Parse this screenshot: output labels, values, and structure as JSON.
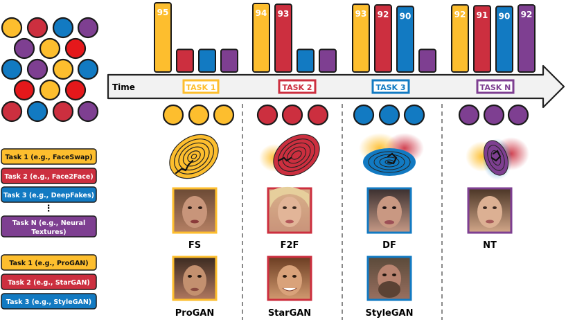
{
  "colors": {
    "yellow": "#FDBE2E",
    "red": "#CC2F3F",
    "blue": "#127AC2",
    "purple": "#7E3F91",
    "bright_red": "#E5181B",
    "outline": "#1a1a1a"
  },
  "pool": {
    "rows": [
      [
        "yellow",
        "red",
        "blue",
        "purple"
      ],
      [
        "purple",
        "yellow",
        "bright_red"
      ],
      [
        "blue",
        "purple",
        "yellow",
        "blue"
      ],
      [
        "bright_red",
        "yellow",
        "bright_red"
      ],
      [
        "red",
        "blue",
        "red",
        "purple"
      ]
    ]
  },
  "timeline": {
    "label": "Time"
  },
  "tasks": [
    {
      "name": "TASK 1",
      "color": "yellow",
      "bars": [
        {
          "value": 95,
          "color": "yellow",
          "label": "95"
        },
        {
          "value": 31,
          "color": "red",
          "label": ""
        },
        {
          "value": 31,
          "color": "blue",
          "label": ""
        },
        {
          "value": 31,
          "color": "purple",
          "label": ""
        }
      ],
      "deepfake_label": "FS",
      "gan_label": "ProGAN"
    },
    {
      "name": "TASK 2",
      "color": "red",
      "bars": [
        {
          "value": 94,
          "color": "yellow",
          "label": "94"
        },
        {
          "value": 93,
          "color": "red",
          "label": "93"
        },
        {
          "value": 31,
          "color": "blue",
          "label": ""
        },
        {
          "value": 31,
          "color": "purple",
          "label": ""
        }
      ],
      "deepfake_label": "F2F",
      "gan_label": "StarGAN"
    },
    {
      "name": "TASK 3",
      "color": "blue",
      "bars": [
        {
          "value": 93,
          "color": "yellow",
          "label": "93"
        },
        {
          "value": 92,
          "color": "red",
          "label": "92"
        },
        {
          "value": 90,
          "color": "blue",
          "label": "90"
        },
        {
          "value": 31,
          "color": "purple",
          "label": ""
        }
      ],
      "deepfake_label": "DF",
      "gan_label": "StyleGAN"
    },
    {
      "name": "TASK N",
      "color": "purple",
      "bars": [
        {
          "value": 92,
          "color": "yellow",
          "label": "92"
        },
        {
          "value": 91,
          "color": "red",
          "label": "91"
        },
        {
          "value": 90,
          "color": "blue",
          "label": "90"
        },
        {
          "value": 92,
          "color": "purple",
          "label": "92"
        }
      ],
      "deepfake_label": "NT",
      "gan_label": ""
    }
  ],
  "legend_deepfake": [
    {
      "text": "Task 1 (e.g., FaceSwap)",
      "color": "yellow"
    },
    {
      "text": "Task 2 (e.g., Face2Face)",
      "color": "red"
    },
    {
      "text": "Task 3 (e.g., DeepFakes)",
      "color": "blue"
    },
    {
      "text": "Task N (e.g., Neural Textures)",
      "color": "purple"
    }
  ],
  "legend_ellipsis": "⋮",
  "legend_gan": [
    {
      "text": "Task 1 (e.g., ProGAN)",
      "color": "yellow"
    },
    {
      "text": "Task 2 (e.g., StarGAN)",
      "color": "red"
    },
    {
      "text": "Task 3 (e.g., StyleGAN)",
      "color": "blue"
    }
  ]
}
